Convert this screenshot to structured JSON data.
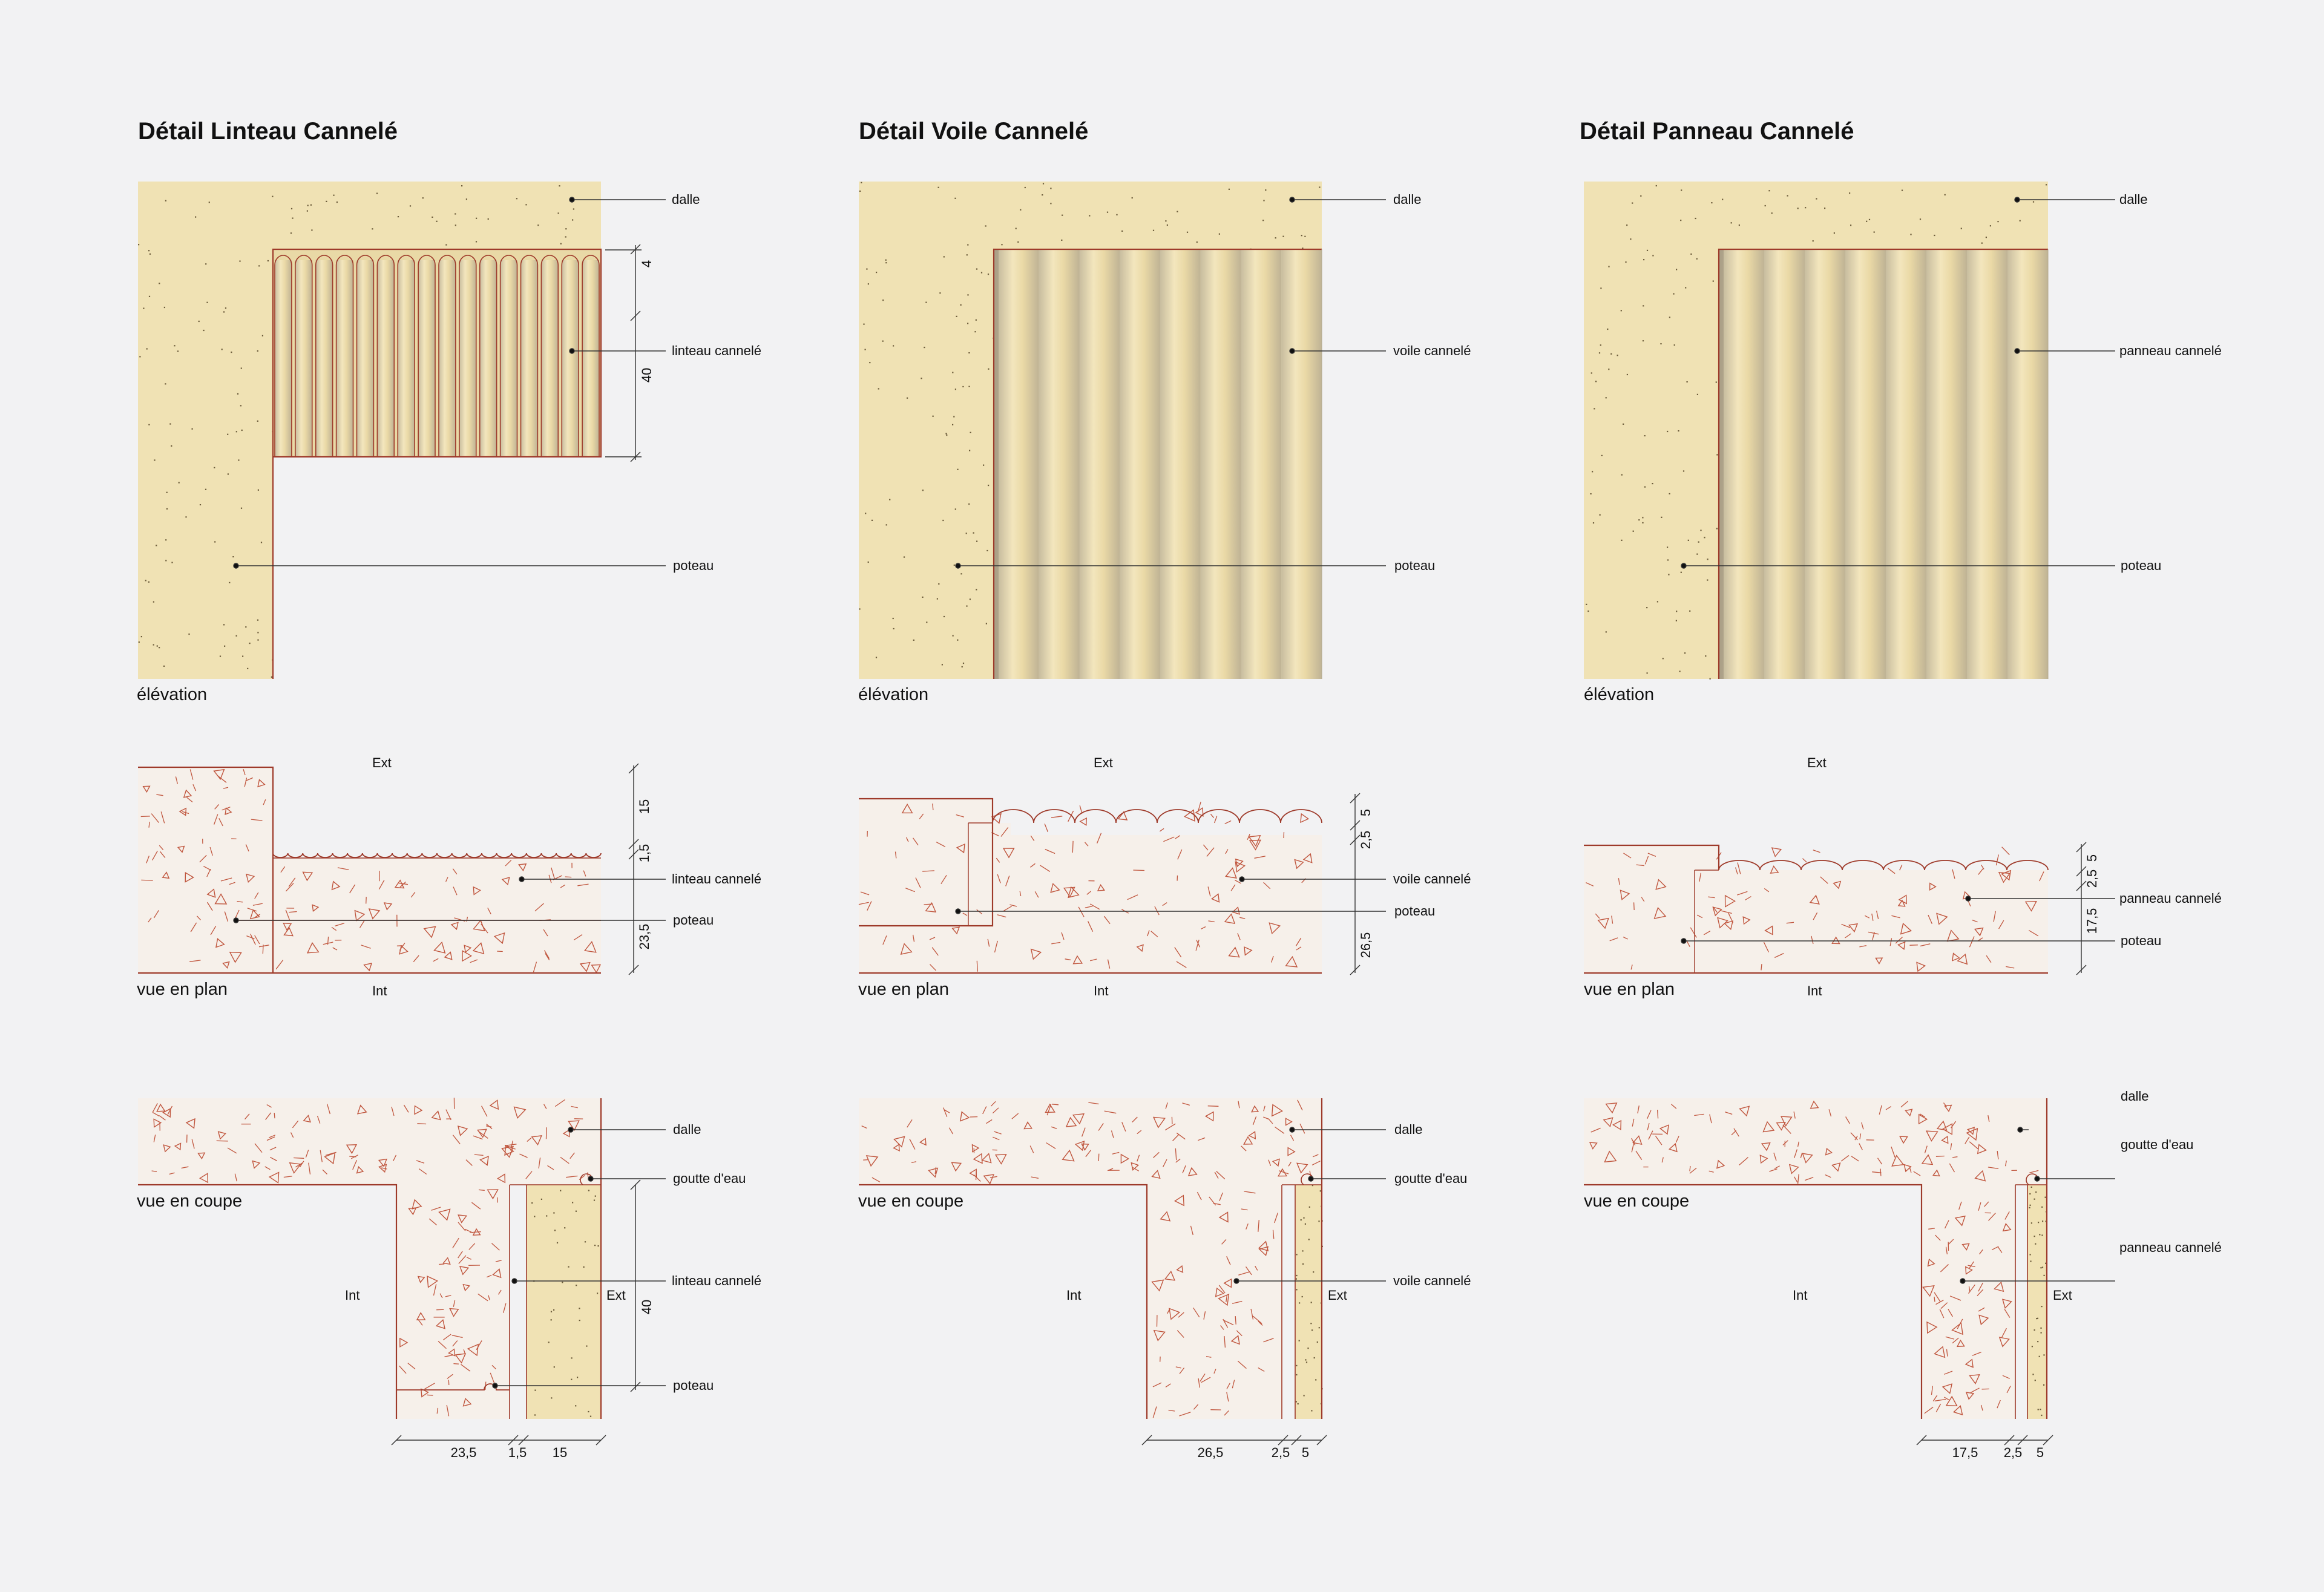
{
  "titles": [
    "Détail Linteau Cannelé",
    "Détail Voile Cannelé",
    "Détail Panneau Cannelé"
  ],
  "views": {
    "elevation": "élévation",
    "plan": "vue en plan",
    "section": "vue en coupe"
  },
  "sides": {
    "ext": "Ext",
    "int": "Int"
  },
  "labels": {
    "dalle": "dalle",
    "poteau": "poteau",
    "goutte": "goutte d'eau",
    "linteau": "linteau cannelé",
    "voile": "voile cannelé",
    "panneau": "panneau cannelé"
  },
  "dims": {
    "elev1": [
      "4",
      "40"
    ],
    "plan1": [
      "15",
      "1,5",
      "23,5"
    ],
    "plan2": [
      "2,5",
      "5",
      "26,5"
    ],
    "plan3": [
      "2,5",
      "5",
      "17,5"
    ],
    "sec1": [
      "23,5",
      "1,5",
      "15",
      "40"
    ],
    "sec2": [
      "26,5",
      "2,5",
      "5"
    ],
    "sec3": [
      "17,5",
      "2,5",
      "5"
    ]
  },
  "colors": {
    "background": "#f2f2f3",
    "concrete_cream": "#f0e2b4",
    "outline_red": "#9e3a2a",
    "flute_shadow": "#c9bea3",
    "hatch_red": "#c0563e"
  }
}
